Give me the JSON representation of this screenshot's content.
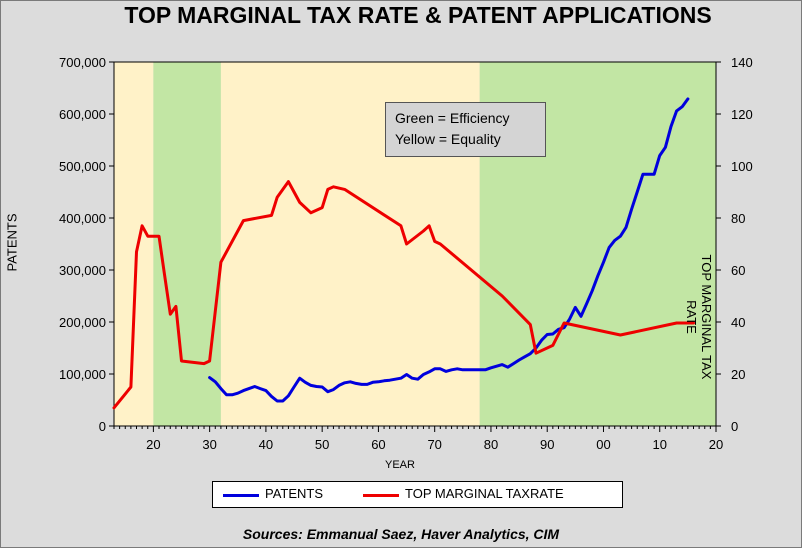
{
  "chart_data": {
    "type": "line",
    "title": "TOP MARGINAL TAX RATE & PATENT APPLICATIONS",
    "xlabel": "YEAR",
    "ylabel_left": "PATENTS",
    "ylabel_right": "TOP MARGINAL TAX RATE",
    "xlim": [
      1913,
      2020
    ],
    "x_ticks": [
      1920,
      1930,
      1940,
      1950,
      1960,
      1970,
      1980,
      1990,
      2000,
      2010,
      2020
    ],
    "x_tick_labels": [
      "20",
      "30",
      "40",
      "50",
      "60",
      "70",
      "80",
      "90",
      "00",
      "10",
      "20"
    ],
    "ylim_left": [
      0,
      700000
    ],
    "y_ticks_left": [
      0,
      100000,
      200000,
      300000,
      400000,
      500000,
      600000,
      700000
    ],
    "y_tick_labels_left": [
      "0",
      "100,000",
      "200,000",
      "300,000",
      "400,000",
      "500,000",
      "600,000",
      "700,000"
    ],
    "ylim_right": [
      0,
      140
    ],
    "y_ticks_right": [
      0,
      20,
      40,
      60,
      80,
      100,
      120,
      140
    ],
    "y_tick_labels_right": [
      "0",
      "20",
      "40",
      "60",
      "80",
      "100",
      "120",
      "140"
    ],
    "grid": false,
    "legend_position": "bottom",
    "shaded_regions": [
      {
        "from": 1913,
        "to": 1920,
        "color": "#fff2c8",
        "label": "Equality"
      },
      {
        "from": 1920,
        "to": 1932,
        "color": "#c2e6a4",
        "label": "Efficiency"
      },
      {
        "from": 1932,
        "to": 1978,
        "color": "#fff2c8",
        "label": "Equality"
      },
      {
        "from": 1978,
        "to": 2020,
        "color": "#c2e6a4",
        "label": "Efficiency"
      }
    ],
    "annotation": [
      "Green = Efficiency",
      "Yellow = Equality"
    ],
    "series": [
      {
        "name": "PATENTS",
        "axis": "left",
        "color": "#0000dd",
        "x": [
          1930,
          1931,
          1932,
          1933,
          1934,
          1935,
          1936,
          1937,
          1938,
          1939,
          1940,
          1941,
          1942,
          1943,
          1944,
          1945,
          1946,
          1947,
          1948,
          1949,
          1950,
          1951,
          1952,
          1953,
          1954,
          1955,
          1956,
          1957,
          1958,
          1959,
          1960,
          1961,
          1962,
          1963,
          1964,
          1965,
          1966,
          1967,
          1968,
          1969,
          1970,
          1971,
          1972,
          1973,
          1974,
          1975,
          1976,
          1977,
          1978,
          1979,
          1980,
          1981,
          1982,
          1983,
          1984,
          1985,
          1986,
          1987,
          1988,
          1989,
          1990,
          1991,
          1992,
          1993,
          1994,
          1995,
          1996,
          1997,
          1998,
          1999,
          2000,
          2001,
          2002,
          2003,
          2004,
          2005,
          2006,
          2007,
          2008,
          2009,
          2010,
          2011,
          2012,
          2013,
          2014,
          2015
        ],
        "values": [
          93000,
          85000,
          72000,
          60000,
          60000,
          63000,
          68000,
          72000,
          76000,
          72000,
          68000,
          57000,
          48000,
          48000,
          58000,
          75000,
          92000,
          84000,
          78000,
          76000,
          75000,
          66000,
          70000,
          78000,
          83000,
          85000,
          82000,
          80000,
          80000,
          84000,
          85000,
          87000,
          88000,
          90000,
          92000,
          99000,
          92000,
          90000,
          99000,
          104000,
          110000,
          110000,
          105000,
          108000,
          110000,
          108000,
          108000,
          108000,
          108000,
          108000,
          112000,
          115000,
          118000,
          113000,
          120000,
          127000,
          133000,
          139000,
          150000,
          165000,
          176000,
          177000,
          186000,
          189000,
          206000,
          228000,
          211000,
          235000,
          260000,
          289000,
          315000,
          343000,
          357000,
          365000,
          382000,
          417000,
          450000,
          484000,
          484000,
          484000,
          520000,
          536000,
          576000,
          606000,
          614000,
          629000
        ]
      },
      {
        "name": "TOP MARGINAL TAX RATE",
        "axis": "right",
        "color": "#ee0000",
        "step": true,
        "x": [
          1913,
          1916,
          1917,
          1918,
          1919,
          1921,
          1922,
          1923,
          1924,
          1925,
          1929,
          1930,
          1932,
          1936,
          1941,
          1942,
          1944,
          1946,
          1948,
          1950,
          1951,
          1952,
          1954,
          1964,
          1965,
          1968,
          1969,
          1970,
          1971,
          1982,
          1987,
          1988,
          1991,
          1993,
          2003,
          2013,
          2016
        ],
        "values": [
          7,
          15,
          67,
          77,
          73,
          73,
          58,
          43,
          46,
          25,
          24,
          25,
          63,
          79,
          81,
          88,
          94,
          86,
          82,
          84,
          91,
          92,
          91,
          77,
          70,
          75,
          77,
          71,
          70,
          50,
          39,
          28,
          31,
          39.6,
          35,
          39.6,
          39.6
        ]
      }
    ],
    "legend": [
      "PATENTS",
      "TOP MARGINAL TAXRATE"
    ],
    "source": "Sources: Emmanual Saez, Haver Analytics, CIM"
  }
}
